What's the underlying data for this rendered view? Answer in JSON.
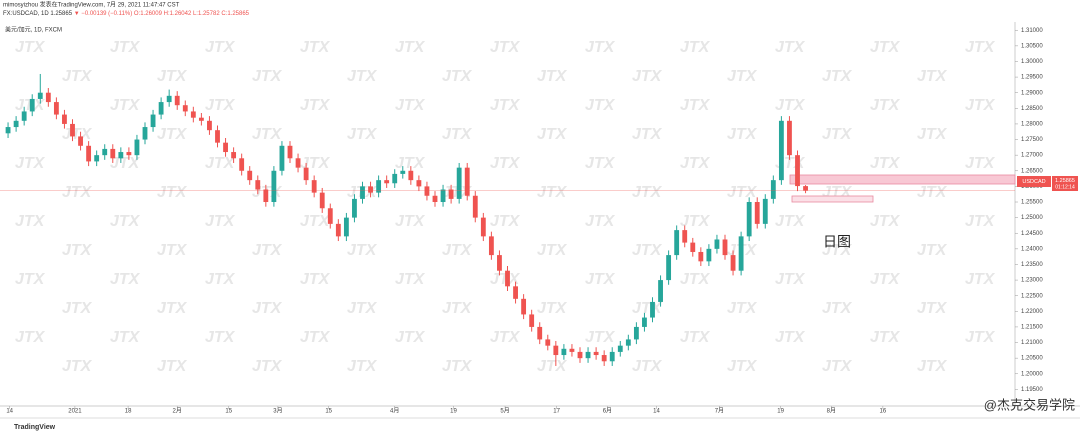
{
  "header": {
    "line1": "mimosyizhou 发表在TradingView.com, 7月 29, 2021 11:47:47 CST",
    "line2_symbol": "FX:USDCAD, 1D 1.25865",
    "line2_change": "▼ −0.00139 (−0.11%)",
    "line2_ohlc": "O:1.26009 H:1.26042 L:1.25782 C:1.25865",
    "instrument": "美元/加元, 1D, FXCM"
  },
  "watermark": "JTX",
  "annotation": "日图",
  "price_tag": {
    "symbol": "USDCAD",
    "price": "1.25865",
    "countdown": "01:12:14"
  },
  "footer": {
    "brand": "TradingView",
    "credit": "@杰克交易学院"
  },
  "chart_data": {
    "type": "candlestick",
    "up_color": "#26a69a",
    "down_color": "#ef5350",
    "xlim": [
      -1,
      125
    ],
    "ylim": [
      1.19,
      1.312
    ],
    "xticks": [
      {
        "value": 0.2,
        "label": "14"
      },
      {
        "value": 8.3,
        "label": "2021"
      },
      {
        "value": 14.9,
        "label": "18"
      },
      {
        "value": 21,
        "label": "2月"
      },
      {
        "value": 27.4,
        "label": "15"
      },
      {
        "value": 33.5,
        "label": "3月"
      },
      {
        "value": 39.8,
        "label": "15"
      },
      {
        "value": 48,
        "label": "4月"
      },
      {
        "value": 55.3,
        "label": "19"
      },
      {
        "value": 61.7,
        "label": "5月"
      },
      {
        "value": 68.1,
        "label": "17"
      },
      {
        "value": 74.4,
        "label": "6月"
      },
      {
        "value": 80.5,
        "label": "14"
      },
      {
        "value": 88.3,
        "label": "7月"
      },
      {
        "value": 95.9,
        "label": "19"
      },
      {
        "value": 102.2,
        "label": "8月"
      },
      {
        "value": 108.6,
        "label": "16"
      }
    ],
    "yticks": [
      {
        "value": 1.195,
        "label": "1.19500"
      },
      {
        "value": 1.2,
        "label": "1.20000"
      },
      {
        "value": 1.205,
        "label": "1.20500"
      },
      {
        "value": 1.21,
        "label": "1.21000"
      },
      {
        "value": 1.215,
        "label": "1.21500"
      },
      {
        "value": 1.22,
        "label": "1.22000"
      },
      {
        "value": 1.225,
        "label": "1.22500"
      },
      {
        "value": 1.23,
        "label": "1.23000"
      },
      {
        "value": 1.235,
        "label": "1.23500"
      },
      {
        "value": 1.24,
        "label": "1.24000"
      },
      {
        "value": 1.245,
        "label": "1.24500"
      },
      {
        "value": 1.25,
        "label": "1.25000"
      },
      {
        "value": 1.255,
        "label": "1.25500"
      },
      {
        "value": 1.26,
        "label": "1.26000"
      },
      {
        "value": 1.265,
        "label": "1.26500"
      },
      {
        "value": 1.27,
        "label": "1.27000"
      },
      {
        "value": 1.275,
        "label": "1.27500"
      },
      {
        "value": 1.28,
        "label": "1.28000"
      },
      {
        "value": 1.285,
        "label": "1.28500"
      },
      {
        "value": 1.29,
        "label": "1.29000"
      },
      {
        "value": 1.295,
        "label": "1.29500"
      },
      {
        "value": 1.3,
        "label": "1.30000"
      },
      {
        "value": 1.305,
        "label": "1.30500"
      },
      {
        "value": 1.31,
        "label": "1.31000"
      }
    ],
    "open": [
      1.277,
      1.279,
      1.281,
      1.284,
      1.288,
      1.29,
      1.287,
      1.283,
      1.28,
      1.276,
      1.273,
      1.268,
      1.27,
      1.272,
      1.269,
      1.271,
      1.27,
      1.275,
      1.279,
      1.283,
      1.287,
      1.289,
      1.286,
      1.284,
      1.282,
      1.281,
      1.278,
      1.274,
      1.271,
      1.269,
      1.265,
      1.262,
      1.259,
      1.255,
      1.265,
      1.273,
      1.269,
      1.266,
      1.262,
      1.258,
      1.253,
      1.248,
      1.244,
      1.25,
      1.256,
      1.26,
      1.258,
      1.262,
      1.261,
      1.264,
      1.265,
      1.262,
      1.26,
      1.257,
      1.255,
      1.259,
      1.256,
      1.266,
      1.257,
      1.25,
      1.244,
      1.238,
      1.233,
      1.228,
      1.224,
      1.219,
      1.215,
      1.211,
      1.209,
      1.206,
      1.208,
      1.207,
      1.205,
      1.207,
      1.206,
      1.204,
      1.207,
      1.209,
      1.211,
      1.215,
      1.218,
      1.223,
      1.23,
      1.238,
      1.246,
      1.242,
      1.239,
      1.236,
      1.24,
      1.243,
      1.238,
      1.233,
      1.244,
      1.255,
      1.248,
      1.256,
      1.262,
      1.281,
      1.27,
      1.26009
    ],
    "high": [
      1.2805,
      1.2825,
      1.2855,
      1.2895,
      1.296,
      1.2915,
      1.2885,
      1.2845,
      1.2815,
      1.2775,
      1.2745,
      1.2715,
      1.2735,
      1.2735,
      1.2725,
      1.2725,
      1.2765,
      1.2805,
      1.2845,
      1.2885,
      1.291,
      1.2905,
      1.2875,
      1.2855,
      1.2835,
      1.2825,
      1.2795,
      1.2755,
      1.2725,
      1.2705,
      1.2665,
      1.2635,
      1.2605,
      1.2665,
      1.2745,
      1.2745,
      1.2705,
      1.2675,
      1.2635,
      1.2595,
      1.2545,
      1.2495,
      1.2515,
      1.2575,
      1.2615,
      1.2615,
      1.2635,
      1.2635,
      1.2655,
      1.2665,
      1.2665,
      1.2635,
      1.2615,
      1.2585,
      1.2605,
      1.2605,
      1.2675,
      1.2675,
      1.2585,
      1.2515,
      1.2455,
      1.2395,
      1.2345,
      1.2295,
      1.2255,
      1.2205,
      1.2165,
      1.2125,
      1.2105,
      1.2095,
      1.2095,
      1.2085,
      1.2085,
      1.2085,
      1.2075,
      1.2085,
      1.2105,
      1.2125,
      1.2165,
      1.2195,
      1.2245,
      1.2315,
      1.2395,
      1.2475,
      1.2475,
      1.2435,
      1.2405,
      1.2415,
      1.2445,
      1.2445,
      1.2395,
      1.2455,
      1.2565,
      1.2565,
      1.2575,
      1.2635,
      1.2825,
      1.2825,
      1.2715,
      1.26042
    ],
    "low": [
      1.2755,
      1.2775,
      1.2795,
      1.2825,
      1.2865,
      1.2855,
      1.2815,
      1.2785,
      1.2745,
      1.2715,
      1.2665,
      1.2665,
      1.2685,
      1.2675,
      1.2675,
      1.2685,
      1.2685,
      1.2735,
      1.2775,
      1.2815,
      1.2855,
      1.2845,
      1.2825,
      1.2805,
      1.2795,
      1.2765,
      1.2725,
      1.2695,
      1.2675,
      1.2635,
      1.2605,
      1.2575,
      1.2535,
      1.2535,
      1.2635,
      1.2675,
      1.2645,
      1.2605,
      1.2565,
      1.2515,
      1.2465,
      1.2425,
      1.2425,
      1.2485,
      1.2545,
      1.2565,
      1.2565,
      1.2595,
      1.2595,
      1.2625,
      1.2605,
      1.2585,
      1.2555,
      1.2535,
      1.2535,
      1.2545,
      1.2545,
      1.2555,
      1.2485,
      1.2425,
      1.2365,
      1.2315,
      1.2265,
      1.2225,
      1.2175,
      1.2135,
      1.2095,
      1.2075,
      1.2025,
      1.2045,
      1.2055,
      1.2035,
      1.2035,
      1.2045,
      1.2025,
      1.2025,
      1.2055,
      1.2075,
      1.2095,
      1.2135,
      1.2165,
      1.2215,
      1.2285,
      1.2365,
      1.2405,
      1.2375,
      1.2345,
      1.2345,
      1.2385,
      1.2365,
      1.2315,
      1.2315,
      1.2425,
      1.2465,
      1.2465,
      1.2545,
      1.2605,
      1.2685,
      1.2585,
      1.25782
    ],
    "close": [
      1.279,
      1.281,
      1.284,
      1.288,
      1.29,
      1.287,
      1.283,
      1.28,
      1.276,
      1.273,
      1.268,
      1.27,
      1.272,
      1.269,
      1.271,
      1.27,
      1.275,
      1.279,
      1.283,
      1.287,
      1.289,
      1.286,
      1.284,
      1.282,
      1.281,
      1.278,
      1.274,
      1.271,
      1.269,
      1.265,
      1.262,
      1.259,
      1.255,
      1.265,
      1.273,
      1.269,
      1.266,
      1.262,
      1.258,
      1.253,
      1.248,
      1.244,
      1.25,
      1.256,
      1.26,
      1.258,
      1.262,
      1.261,
      1.264,
      1.265,
      1.262,
      1.26,
      1.257,
      1.255,
      1.259,
      1.256,
      1.266,
      1.257,
      1.25,
      1.244,
      1.238,
      1.233,
      1.228,
      1.224,
      1.219,
      1.215,
      1.211,
      1.209,
      1.206,
      1.208,
      1.207,
      1.205,
      1.207,
      1.206,
      1.204,
      1.207,
      1.209,
      1.211,
      1.215,
      1.218,
      1.223,
      1.23,
      1.238,
      1.246,
      1.242,
      1.239,
      1.236,
      1.24,
      1.243,
      1.238,
      1.233,
      1.244,
      1.255,
      1.248,
      1.256,
      1.262,
      1.281,
      1.27,
      1.2601,
      1.25865
    ]
  }
}
